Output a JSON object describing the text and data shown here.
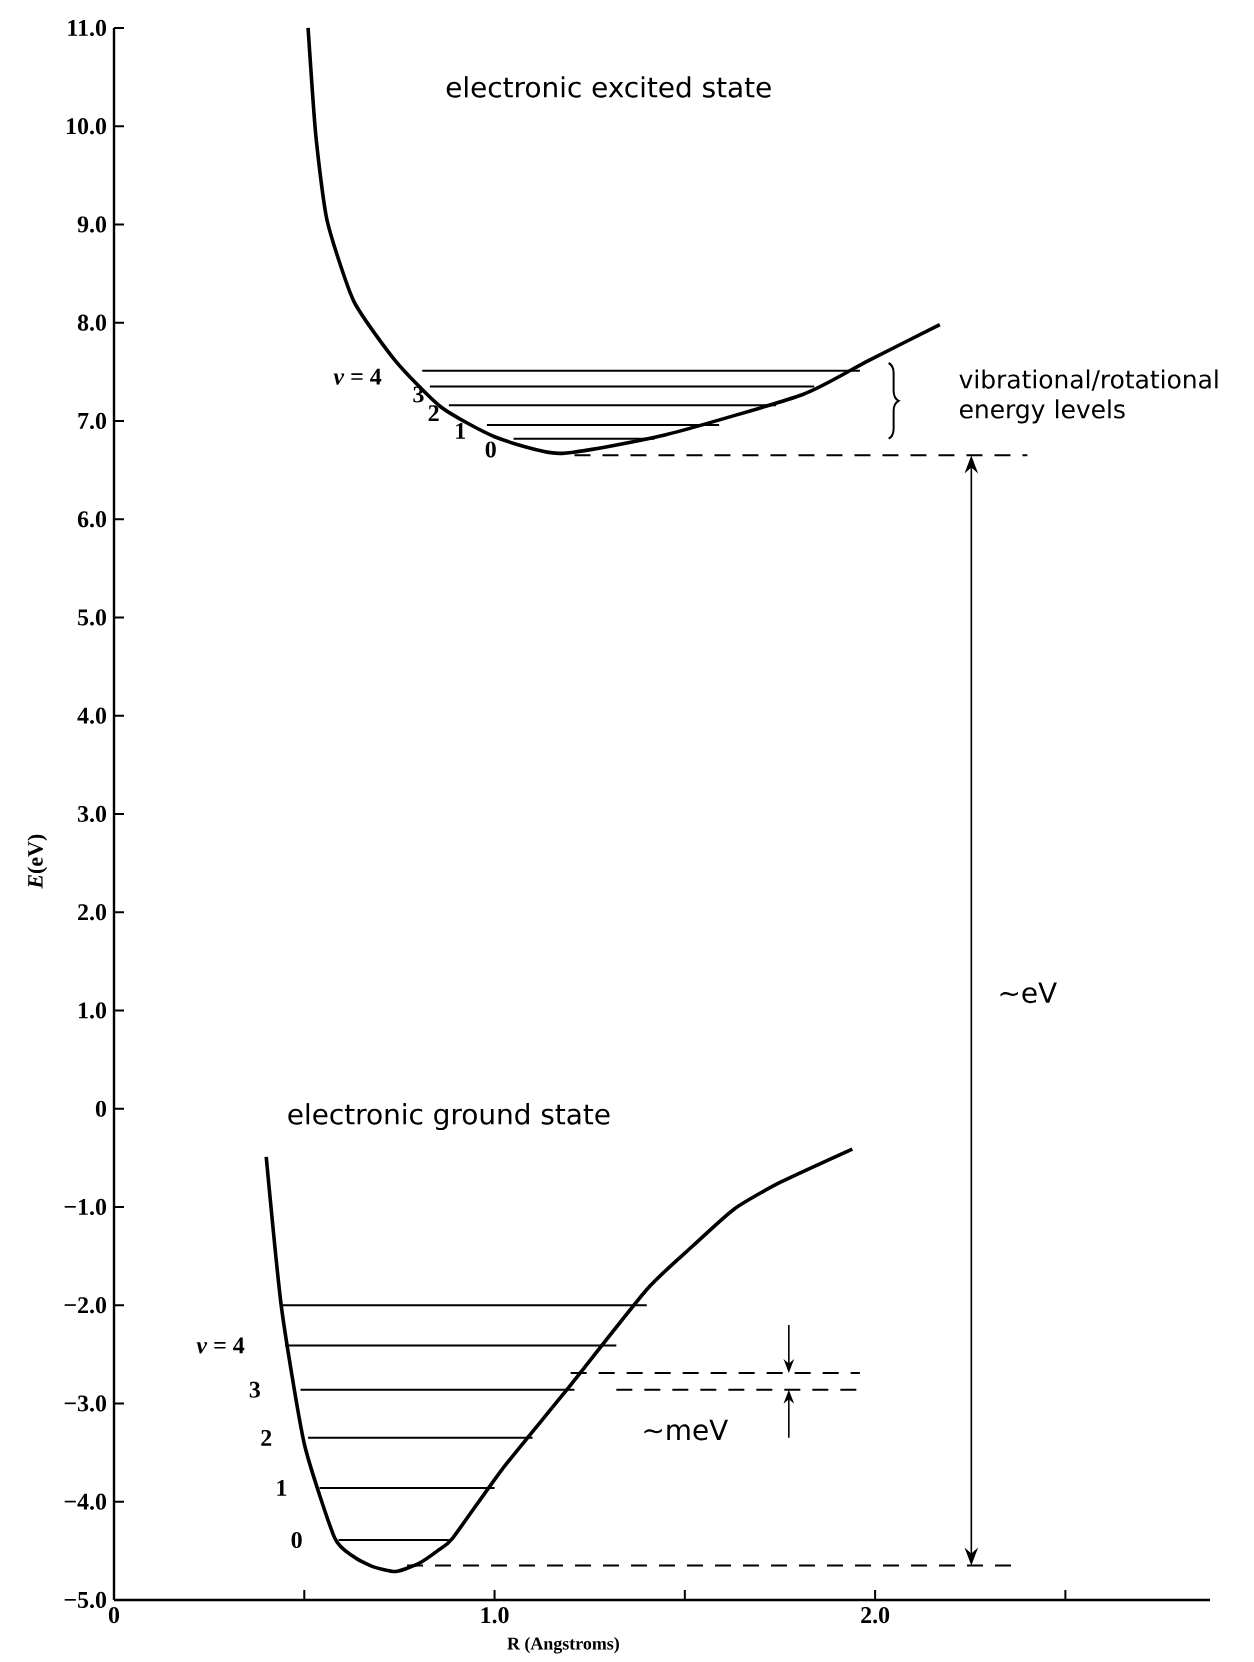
{
  "chart_data": {
    "type": "line",
    "xlabel": "R (Angstroms)",
    "ylabel": "*E*(eV)",
    "xlim": [
      0,
      2.88
    ],
    "ylim": [
      -5,
      11
    ],
    "xticks": [
      0,
      {
        "value": 0.5,
        "label": null
      },
      {
        "value": 1,
        "label": "1.0"
      },
      {
        "value": 1.5,
        "label": null
      },
      {
        "value": 2,
        "label": "2.0"
      },
      {
        "value": 2.5,
        "label": null
      }
    ],
    "yticks": [
      {
        "value": 11,
        "label": "11.0"
      },
      {
        "value": 10,
        "label": "10.0"
      },
      {
        "value": 9,
        "label": "9.0"
      },
      {
        "value": 8,
        "label": "8.0"
      },
      {
        "value": 7,
        "label": "7.0"
      },
      {
        "value": 6,
        "label": "6.0"
      },
      {
        "value": 5,
        "label": "5.0"
      },
      {
        "value": 4,
        "label": "4.0"
      },
      {
        "value": 3,
        "label": "3.0"
      },
      {
        "value": 2,
        "label": "2.0"
      },
      {
        "value": 1,
        "label": "1.0"
      },
      0,
      {
        "value": -1,
        "label": "−1.0"
      },
      {
        "value": -2,
        "label": "−2.0"
      },
      {
        "value": -3,
        "label": "−3.0"
      },
      {
        "value": -4,
        "label": "−4.0"
      },
      {
        "value": -5,
        "label": "−5.0"
      }
    ],
    "grid": false,
    "series": [
      {
        "type": "line",
        "color": "#000000",
        "x": [
          0.51,
          0.53,
          0.56,
          0.63,
          0.74,
          0.86,
          1.0,
          1.17,
          1.45,
          1.81,
          1.98,
          2.17
        ],
        "values": [
          11.0,
          9.92,
          9.04,
          8.22,
          7.61,
          7.14,
          6.84,
          6.67,
          6.86,
          7.27,
          7.61,
          7.98
        ]
      },
      {
        "type": "line",
        "color": "#000000",
        "x": [
          0.4,
          0.44,
          0.5,
          0.58,
          0.63,
          0.68,
          0.74,
          0.8,
          0.85,
          0.89,
          1.02,
          1.19,
          1.4,
          1.52,
          1.63,
          1.75,
          1.94
        ],
        "values": [
          -0.49,
          -2.02,
          -3.41,
          -4.37,
          -4.56,
          -4.66,
          -4.71,
          -4.63,
          -4.5,
          -4.37,
          -3.67,
          -2.86,
          -1.84,
          -1.4,
          -1.02,
          -0.75,
          -0.41
        ]
      },
      {
        "type": "line",
        "color": "#000000",
        "x": [
          0.81,
          1.96
        ],
        "values": [
          7.51,
          7.51
        ]
      },
      {
        "type": "line",
        "color": "#000000",
        "x": [
          0.83,
          1.84
        ],
        "values": [
          7.35,
          7.35
        ]
      },
      {
        "type": "line",
        "color": "#000000",
        "x": [
          0.88,
          1.74
        ],
        "values": [
          7.16,
          7.16
        ]
      },
      {
        "type": "line",
        "color": "#000000",
        "x": [
          0.98,
          1.59
        ],
        "values": [
          6.96,
          6.96
        ]
      },
      {
        "type": "line",
        "color": "#000000",
        "x": [
          1.05,
          1.42
        ],
        "values": [
          6.82,
          6.82
        ]
      },
      {
        "type": "line",
        "color": "#000000",
        "x": [
          0.44,
          1.4
        ],
        "values": [
          -2.0,
          -2.0
        ]
      },
      {
        "type": "line",
        "color": "#000000",
        "x": [
          0.45,
          1.32
        ],
        "values": [
          -2.41,
          -2.41
        ]
      },
      {
        "type": "line",
        "color": "#000000",
        "x": [
          0.49,
          1.21
        ],
        "values": [
          -2.86,
          -2.86
        ]
      },
      {
        "type": "line",
        "color": "#000000",
        "x": [
          0.51,
          1.1
        ],
        "values": [
          -3.35,
          -3.35
        ]
      },
      {
        "type": "line",
        "color": "#000000",
        "x": [
          0.54,
          1.0
        ],
        "values": [
          -3.86,
          -3.86
        ]
      },
      {
        "type": "line",
        "color": "#000000",
        "x": [
          0.59,
          0.88
        ],
        "values": [
          -4.39,
          -4.39
        ]
      },
      {
        "type": "line",
        "color": "#000000",
        "line_style": "dashed",
        "x": [
          1.21,
          2.4
        ],
        "values": [
          6.65,
          6.65
        ]
      },
      {
        "type": "line",
        "color": "#000000",
        "line_style": "dashed",
        "x": [
          0.77,
          2.37
        ],
        "values": [
          -4.65,
          -4.65
        ]
      },
      {
        "type": "line",
        "color": "#000000",
        "line_style": "dashed",
        "x": [
          1.2,
          1.96
        ],
        "values": [
          -2.69,
          -2.69
        ]
      },
      {
        "type": "line",
        "color": "#000000",
        "line_style": "dashed",
        "x": [
          1.32,
          1.96
        ],
        "values": [
          -2.86,
          -2.86
        ]
      }
    ],
    "annotations": [
      "electronic excited state",
      "electronic ground state",
      "vibrational/rotational energy levels",
      "~eV",
      "~meV",
      "*v* = 4",
      "3",
      "2",
      "1",
      "0",
      "*v* = 4",
      "3",
      "2",
      "1",
      "0"
    ]
  }
}
